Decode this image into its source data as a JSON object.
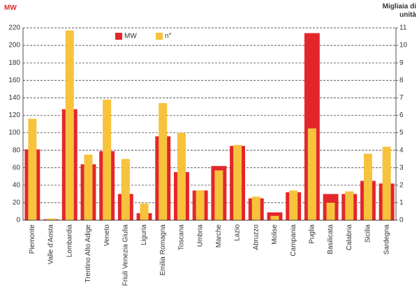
{
  "chart_data": {
    "type": "bar",
    "y_label": "MW",
    "y2_label": "Migliaia di unità",
    "categories": [
      "Piemonte",
      "Valle d'Aosta",
      "Lombardia",
      "Trentino Alto Adige",
      "Veneto",
      "Friuli Venezia Giulia",
      "Liguria",
      "Emilia Romagna",
      "Toscana",
      "Umbria",
      "Marche",
      "Lazio",
      "Abruzzo",
      "Molise",
      "Campania",
      "Puglia",
      "Basilicata",
      "Calabria",
      "Sicilia",
      "Sardegna"
    ],
    "series": [
      {
        "name": "MW",
        "color": "#e3262b",
        "values": [
          81,
          1,
          127,
          64,
          79,
          30,
          8,
          96,
          55,
          34,
          62,
          85,
          25,
          9,
          32,
          214,
          30,
          30,
          45,
          42
        ]
      },
      {
        "name": "n°",
        "color": "#f7c23c",
        "axis": "y2",
        "values": [
          5.8,
          0.1,
          10.85,
          3.75,
          6.9,
          3.5,
          0.95,
          6.7,
          5.0,
          1.7,
          2.85,
          4.3,
          1.35,
          0.25,
          1.7,
          5.25,
          1.0,
          1.65,
          3.8,
          4.2
        ]
      }
    ],
    "ylim": [
      0,
      220
    ],
    "yticks": [
      0,
      20,
      40,
      60,
      80,
      100,
      120,
      140,
      160,
      180,
      200,
      220
    ],
    "y2lim": [
      0,
      11
    ],
    "y2ticks": [
      0,
      1,
      2,
      3,
      4,
      5,
      6,
      7,
      8,
      9,
      10,
      11
    ],
    "grid": true,
    "legend": "top"
  }
}
